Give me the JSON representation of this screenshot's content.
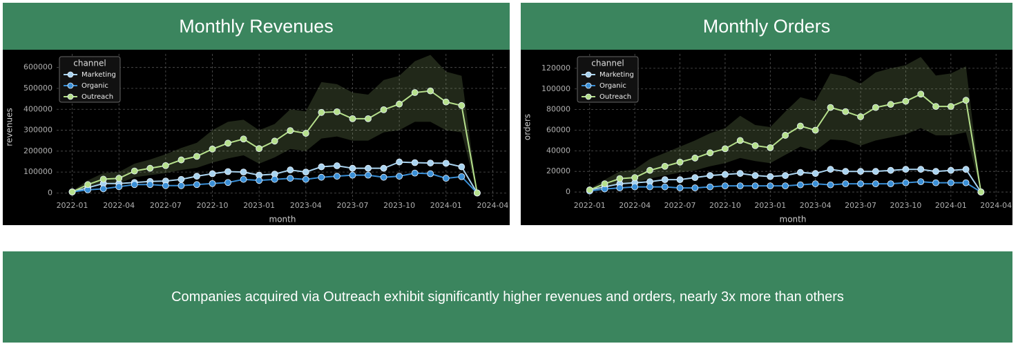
{
  "chart_data": [
    {
      "type": "line",
      "title": "Monthly Revenues",
      "xlabel": "month",
      "ylabel": "revenues",
      "legend_title": "channel",
      "legend": "upper left",
      "grid": true,
      "x": [
        "2022-01",
        "2022-02",
        "2022-03",
        "2022-04",
        "2022-05",
        "2022-06",
        "2022-07",
        "2022-08",
        "2022-09",
        "2022-10",
        "2022-11",
        "2022-12",
        "2023-01",
        "2023-02",
        "2023-03",
        "2023-04",
        "2023-05",
        "2023-06",
        "2023-07",
        "2023-08",
        "2023-09",
        "2023-10",
        "2023-11",
        "2023-12",
        "2024-01",
        "2024-02",
        "2024-03"
      ],
      "xlim": [
        "2021-12",
        "2024-05"
      ],
      "xticks": [
        "2022-01",
        "2022-04",
        "2022-07",
        "2022-10",
        "2023-01",
        "2023-04",
        "2023-07",
        "2023-10",
        "2024-01",
        "2024-04"
      ],
      "ylim": [
        -35000,
        665000
      ],
      "yticks": [
        0,
        100000,
        200000,
        300000,
        400000,
        500000,
        600000
      ],
      "series": [
        {
          "name": "Marketing",
          "color": "#a9d3ef",
          "values": [
            5000,
            25000,
            45000,
            45000,
            50000,
            55000,
            57000,
            65000,
            80000,
            92000,
            102000,
            100000,
            85000,
            90000,
            110000,
            100000,
            125000,
            130000,
            118000,
            118000,
            118000,
            148000,
            145000,
            143000,
            142000,
            125000,
            0
          ]
        },
        {
          "name": "Organic",
          "color": "#3a8fd6",
          "values": [
            5000,
            15000,
            20000,
            30000,
            40000,
            40000,
            35000,
            35000,
            40000,
            45000,
            50000,
            65000,
            60000,
            65000,
            70000,
            65000,
            75000,
            80000,
            85000,
            85000,
            75000,
            80000,
            95000,
            92000,
            70000,
            78000,
            0
          ]
        },
        {
          "name": "Outreach",
          "color": "#b6e08c",
          "values": [
            5000,
            40000,
            66000,
            70000,
            105000,
            118000,
            131000,
            158000,
            175000,
            210000,
            238000,
            258000,
            212000,
            248000,
            298000,
            285000,
            385000,
            388000,
            355000,
            355000,
            398000,
            425000,
            480000,
            488000,
            435000,
            418000,
            0
          ],
          "upper": [
            10000,
            60000,
            95000,
            100000,
            140000,
            160000,
            185000,
            215000,
            240000,
            300000,
            340000,
            350000,
            300000,
            330000,
            400000,
            390000,
            530000,
            520000,
            480000,
            470000,
            540000,
            560000,
            630000,
            660000,
            580000,
            560000,
            0
          ],
          "lower": [
            2000,
            25000,
            45000,
            45000,
            75000,
            85000,
            95000,
            110000,
            120000,
            145000,
            165000,
            180000,
            140000,
            170000,
            210000,
            200000,
            260000,
            270000,
            250000,
            250000,
            290000,
            300000,
            340000,
            340000,
            300000,
            290000,
            0
          ]
        }
      ]
    },
    {
      "type": "line",
      "title": "Monthly Orders",
      "xlabel": "month",
      "ylabel": "orders",
      "legend_title": "channel",
      "legend": "upper left",
      "grid": true,
      "x": [
        "2022-01",
        "2022-02",
        "2022-03",
        "2022-04",
        "2022-05",
        "2022-06",
        "2022-07",
        "2022-08",
        "2022-09",
        "2022-10",
        "2022-11",
        "2022-12",
        "2023-01",
        "2023-02",
        "2023-03",
        "2023-04",
        "2023-05",
        "2023-06",
        "2023-07",
        "2023-08",
        "2023-09",
        "2023-10",
        "2023-11",
        "2023-12",
        "2024-01",
        "2024-02",
        "2024-03"
      ],
      "xlim": [
        "2021-12",
        "2024-05"
      ],
      "xticks": [
        "2022-01",
        "2022-04",
        "2022-07",
        "2022-10",
        "2023-01",
        "2023-04",
        "2023-07",
        "2023-10",
        "2024-01",
        "2024-04"
      ],
      "ylim": [
        -8000,
        134000
      ],
      "yticks": [
        0,
        20000,
        40000,
        60000,
        80000,
        100000,
        120000
      ],
      "series": [
        {
          "name": "Marketing",
          "color": "#a9d3ef",
          "values": [
            2000,
            5000,
            8000,
            9000,
            10000,
            12000,
            12000,
            14000,
            16000,
            17000,
            18000,
            16000,
            15000,
            16000,
            19000,
            18000,
            22000,
            20000,
            20000,
            20000,
            21000,
            22000,
            22000,
            20000,
            21000,
            22000,
            0
          ]
        },
        {
          "name": "Organic",
          "color": "#3a8fd6",
          "values": [
            1000,
            3000,
            4000,
            5000,
            5000,
            5000,
            4000,
            4000,
            5000,
            6000,
            6000,
            6000,
            6000,
            6000,
            7000,
            8000,
            7000,
            8000,
            8000,
            8000,
            8000,
            9000,
            10000,
            9000,
            9000,
            9000,
            0
          ]
        },
        {
          "name": "Outreach",
          "color": "#b6e08c",
          "values": [
            2000,
            8000,
            13000,
            14000,
            21000,
            25000,
            29000,
            33000,
            38000,
            42000,
            50000,
            45000,
            43000,
            55000,
            64000,
            60000,
            82000,
            78000,
            73000,
            82000,
            85000,
            88000,
            95000,
            83000,
            83000,
            89000,
            0
          ],
          "upper": [
            3000,
            12000,
            20000,
            22000,
            32000,
            38000,
            44000,
            50000,
            57000,
            62000,
            74000,
            65000,
            63000,
            78000,
            92000,
            88000,
            115000,
            112000,
            105000,
            116000,
            120000,
            123000,
            131000,
            113000,
            115000,
            122000,
            0
          ],
          "lower": [
            1000,
            5000,
            8000,
            9000,
            13000,
            16000,
            19000,
            21000,
            25000,
            28000,
            33000,
            30000,
            28000,
            36000,
            44000,
            40000,
            51000,
            50000,
            45000,
            50000,
            53000,
            56000,
            62000,
            55000,
            55000,
            58000,
            0
          ]
        }
      ]
    }
  ],
  "footer": {
    "text": "Companies acquired via Outreach exhibit significantly higher revenues and orders, nearly 3x more than others"
  }
}
